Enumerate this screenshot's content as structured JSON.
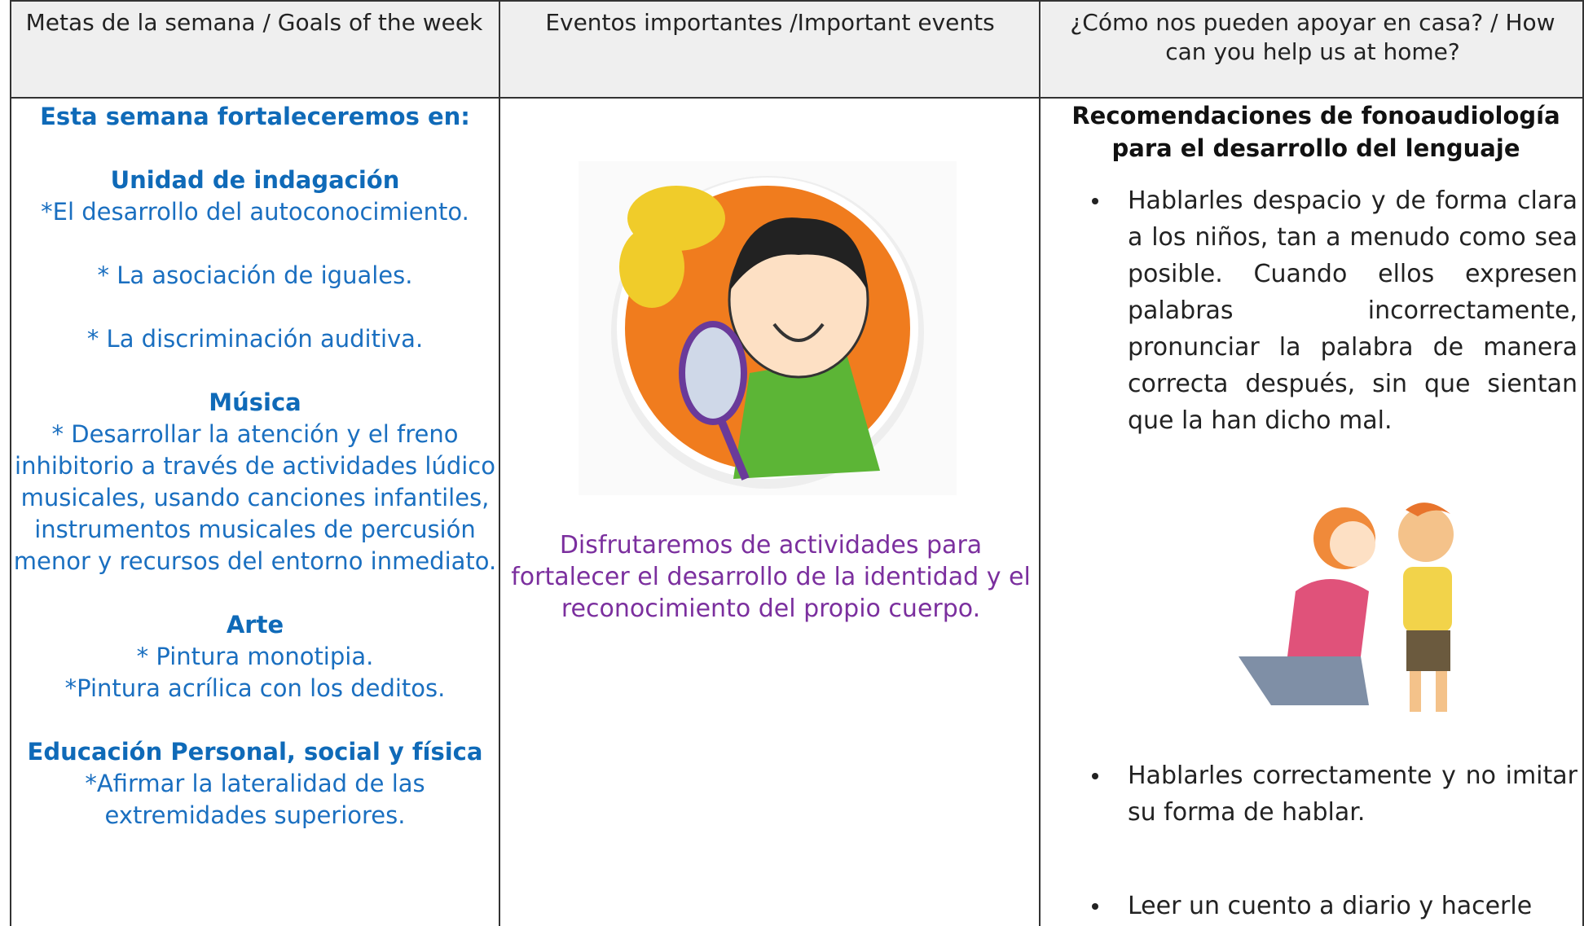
{
  "table": {
    "headers": [
      "Metas de la semana / Goals of the week",
      "Eventos importantes /Important events",
      "¿Cómo nos pueden apoyar en casa? / How can you help us at home?"
    ],
    "goals": {
      "intro": "Esta semana fortaleceremos en:",
      "sections": [
        {
          "title": "Unidad de indagación",
          "items": [
            "*El desarrollo del autoconocimiento.",
            "* La asociación de iguales.",
            "* La discriminación auditiva."
          ]
        },
        {
          "title": "Música",
          "items": [
            "* Desarrollar la atención y el freno inhibitorio a través de actividades lúdico musicales, usando canciones infantiles, instrumentos musicales de percusión menor y  recursos del entorno inmediato."
          ]
        },
        {
          "title": "Arte",
          "items": [
            "* Pintura monotipia.",
            "*Pintura acrílica  con los deditos."
          ]
        },
        {
          "title": "Educación Personal, social y física",
          "items": [
            "*Afirmar la lateralidad de las extremidades superiores."
          ]
        }
      ]
    },
    "events": {
      "text": "Disfrutaremos de actividades para fortalecer el desarrollo de la identidad y el reconocimiento del propio cuerpo."
    },
    "help": {
      "title": "Recomendaciones de fonoaudiología para el desarrollo del lenguaje",
      "items": [
        "Hablarles despacio y de forma clara a los niños, tan a menudo como sea posible.  Cuando ellos expresen palabras incorrectamente, pronunciar la palabra de manera correcta después, sin que sientan que la han dicho mal.",
        "Hablarles correctamente y no imitar su forma de hablar.",
        "Leer un cuento a diario y hacerle"
      ]
    }
  }
}
